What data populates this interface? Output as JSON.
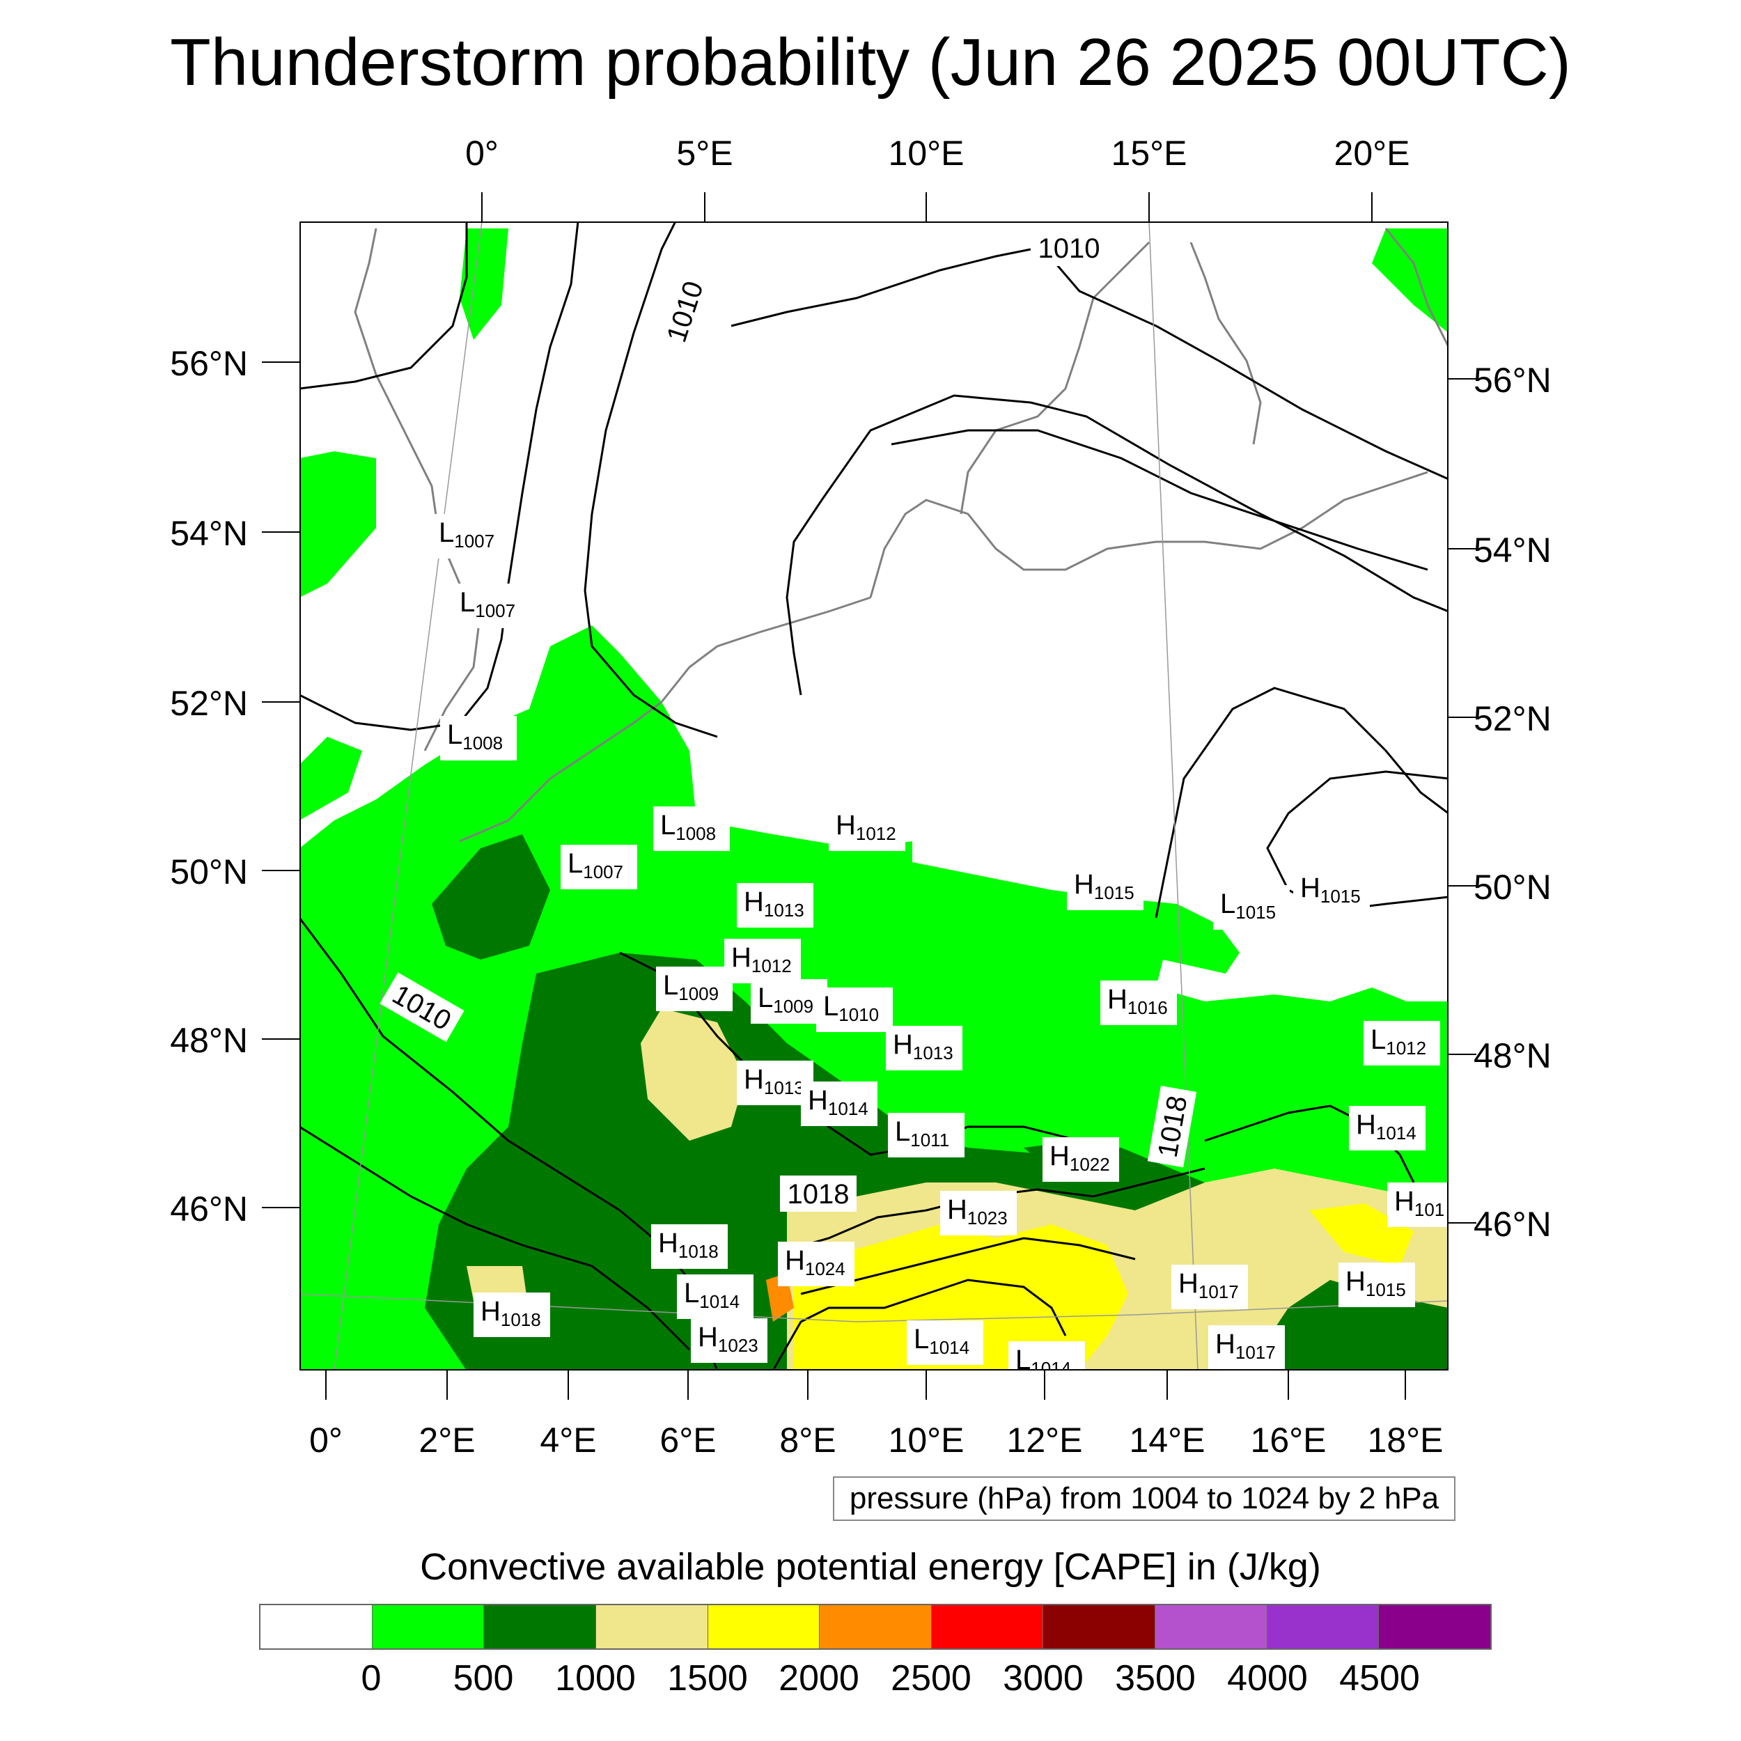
{
  "title": "Thunderstorm probability (Jun 26 2025 00UTC)",
  "top_lon_labels": [
    "0°",
    "5°E",
    "10°E",
    "15°E",
    "20°E"
  ],
  "bottom_lon_labels": [
    "0°",
    "2°E",
    "4°E",
    "6°E",
    "8°E",
    "10°E",
    "12°E",
    "14°E",
    "16°E",
    "18°E"
  ],
  "left_lat_labels": [
    "56°N",
    "54°N",
    "52°N",
    "50°N",
    "48°N",
    "46°N"
  ],
  "right_lat_labels": [
    "56°N",
    "54°N",
    "52°N",
    "50°N",
    "48°N",
    "46°N"
  ],
  "contour_note": "pressure (hPa) from 1004 to 1024 by 2 hPa",
  "colorbar": {
    "title": "Convective available potential energy [CAPE] in (J/kg)",
    "colors": [
      "#ffffff",
      "#00ff00",
      "#007800",
      "#f0e68c",
      "#ffff00",
      "#ff8c00",
      "#ff0000",
      "#8b0000",
      "#b452cd",
      "#9932cc",
      "#8b008b"
    ],
    "labels": [
      "0",
      "500",
      "1000",
      "1500",
      "2000",
      "2500",
      "3000",
      "3500",
      "4000",
      "4500"
    ]
  },
  "contour_labels": [
    "1010",
    "1010",
    "1010",
    "1018",
    "1018"
  ],
  "pressure_centers": [
    {
      "type": "L",
      "value": "1007"
    },
    {
      "type": "L",
      "value": "1007"
    },
    {
      "type": "L",
      "value": "1008"
    },
    {
      "type": "L",
      "value": "1008"
    },
    {
      "type": "L",
      "value": "1007"
    },
    {
      "type": "H",
      "value": "1012"
    },
    {
      "type": "H",
      "value": "1013"
    },
    {
      "type": "H",
      "value": "1015"
    },
    {
      "type": "L",
      "value": "1015"
    },
    {
      "type": "H",
      "value": "1015"
    },
    {
      "type": "H",
      "value": "1012"
    },
    {
      "type": "L",
      "value": "1009"
    },
    {
      "type": "L",
      "value": "1009"
    },
    {
      "type": "L",
      "value": "1010"
    },
    {
      "type": "H",
      "value": "1016"
    },
    {
      "type": "H",
      "value": "1013"
    },
    {
      "type": "L",
      "value": "1012"
    },
    {
      "type": "H",
      "value": "1013"
    },
    {
      "type": "H",
      "value": "1014"
    },
    {
      "type": "L",
      "value": "1011"
    },
    {
      "type": "H",
      "value": "1022"
    },
    {
      "type": "H",
      "value": "1014"
    },
    {
      "type": "H",
      "value": "1023"
    },
    {
      "type": "H",
      "value": "101"
    },
    {
      "type": "H",
      "value": "1018"
    },
    {
      "type": "H",
      "value": "1024"
    },
    {
      "type": "L",
      "value": "1014"
    },
    {
      "type": "H",
      "value": "1017"
    },
    {
      "type": "H",
      "value": "1015"
    },
    {
      "type": "H",
      "value": "1018"
    },
    {
      "type": "H",
      "value": "1023"
    },
    {
      "type": "L",
      "value": "1014"
    },
    {
      "type": "L",
      "value": "1014"
    },
    {
      "type": "H",
      "value": "1017"
    }
  ]
}
